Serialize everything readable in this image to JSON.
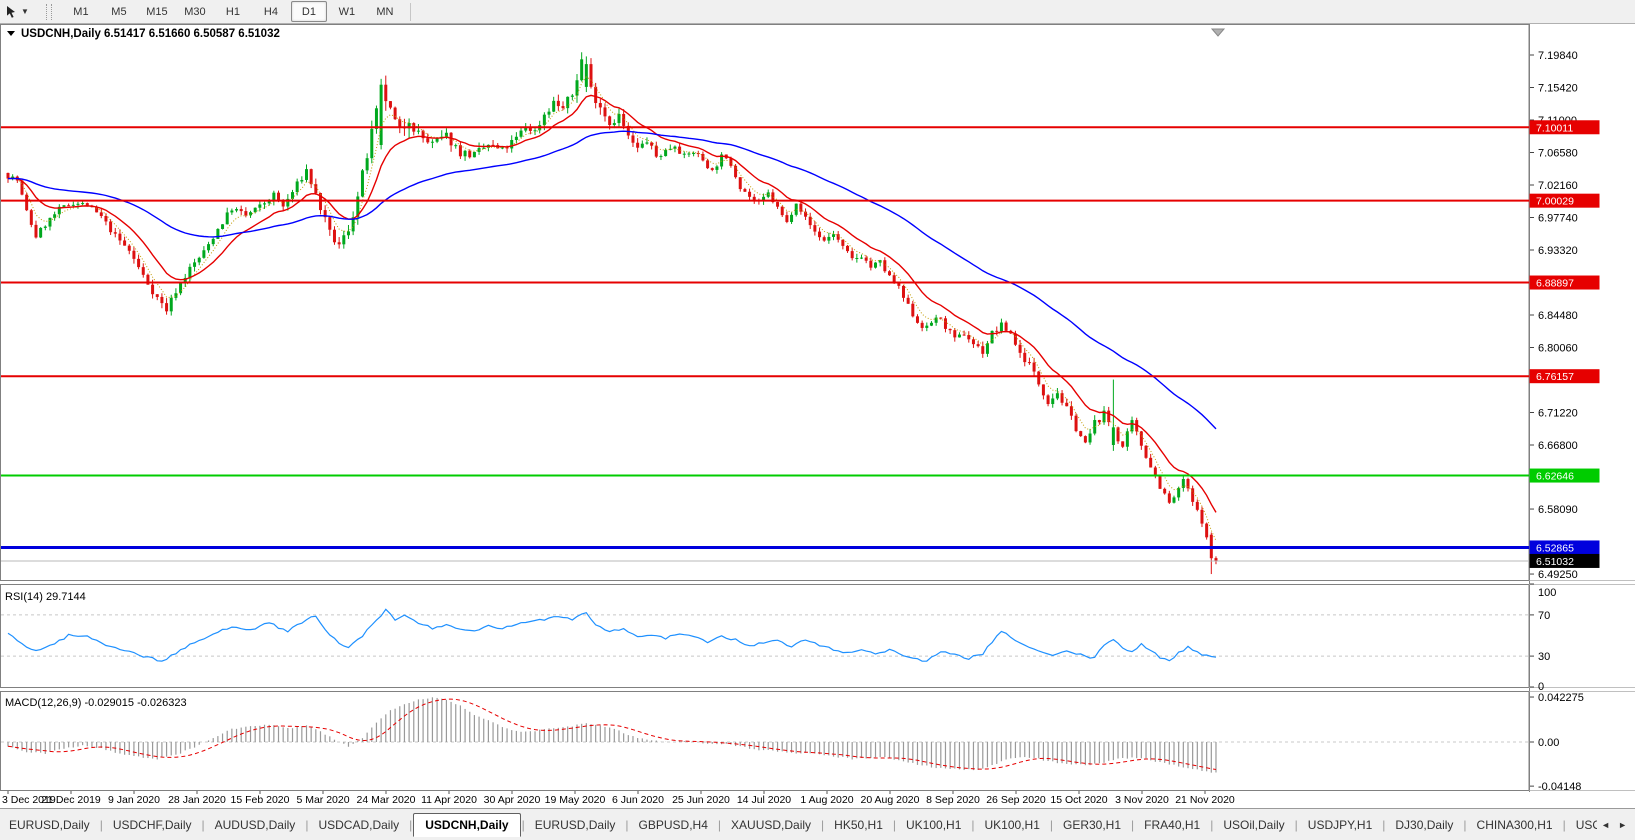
{
  "toolbar": {
    "timeframes": [
      "M1",
      "M5",
      "M15",
      "M30",
      "H1",
      "H4",
      "D1",
      "W1",
      "MN"
    ],
    "active_timeframe": "D1"
  },
  "chart": {
    "symbol": "USDCNH,Daily",
    "ohlc": "6.51417 6.51660 6.50587 6.51032",
    "price_axis_labels": [
      {
        "text": "7.19840",
        "value": 7.1984
      },
      {
        "text": "7.15420",
        "value": 7.1542
      },
      {
        "text": "7.11000",
        "value": 7.11
      },
      {
        "text": "7.06580",
        "value": 7.0658
      },
      {
        "text": "7.02160",
        "value": 7.0216
      },
      {
        "text": "6.97740",
        "value": 6.9774
      },
      {
        "text": "6.93320",
        "value": 6.9332
      },
      {
        "text": "6.84480",
        "value": 6.8448
      },
      {
        "text": "6.80060",
        "value": 6.8006
      },
      {
        "text": "6.71220",
        "value": 6.7122
      },
      {
        "text": "6.66800",
        "value": 6.668
      },
      {
        "text": "6.58090",
        "value": 6.5809
      },
      {
        "text": "6.49250",
        "value": 6.4925
      }
    ],
    "hlines": [
      {
        "value": 7.10011,
        "label": "7.10011",
        "color": "#e60000",
        "width": 2
      },
      {
        "value": 7.00029,
        "label": "7.00029",
        "color": "#e60000",
        "width": 2
      },
      {
        "value": 6.88897,
        "label": "6.88897",
        "color": "#e60000",
        "width": 2
      },
      {
        "value": 6.76157,
        "label": "6.76157",
        "color": "#e60000",
        "width": 2
      },
      {
        "value": 6.62646,
        "label": "6.62646",
        "color": "#00cc00",
        "width": 2
      },
      {
        "value": 6.52865,
        "label": "6.52865",
        "color": "#0000dd",
        "width": 3
      },
      {
        "value": 6.51032,
        "label": "6.51032",
        "color": "#b8b8b8",
        "width": 1,
        "label_bg": "#000000"
      }
    ]
  },
  "chart_data": {
    "type": "candlestick",
    "symbol": "USDCNH",
    "timeframe": "Daily",
    "bars": 260,
    "seed": 7,
    "up_color": "#00a81e",
    "down_color": "#dd1111",
    "price_keypoints": [
      [
        0,
        7.038
      ],
      [
        3,
        7.028
      ],
      [
        5,
        6.985
      ],
      [
        7,
        6.952
      ],
      [
        9,
        6.968
      ],
      [
        12,
        6.988
      ],
      [
        15,
        6.998
      ],
      [
        18,
        6.994
      ],
      [
        21,
        6.978
      ],
      [
        24,
        6.952
      ],
      [
        27,
        6.932
      ],
      [
        30,
        6.898
      ],
      [
        33,
        6.868
      ],
      [
        35,
        6.852
      ],
      [
        37,
        6.878
      ],
      [
        40,
        6.908
      ],
      [
        43,
        6.93
      ],
      [
        46,
        6.962
      ],
      [
        49,
        6.99
      ],
      [
        52,
        6.98
      ],
      [
        55,
        6.992
      ],
      [
        58,
        7.008
      ],
      [
        60,
        6.992
      ],
      [
        63,
        7.022
      ],
      [
        65,
        7.042
      ],
      [
        67,
        7.008
      ],
      [
        70,
        6.955
      ],
      [
        72,
        6.938
      ],
      [
        74,
        6.962
      ],
      [
        76,
        7.005
      ],
      [
        78,
        7.062
      ],
      [
        80,
        7.118
      ],
      [
        81,
        7.158
      ],
      [
        83,
        7.12
      ],
      [
        85,
        7.092
      ],
      [
        87,
        7.115
      ],
      [
        89,
        7.09
      ],
      [
        92,
        7.076
      ],
      [
        95,
        7.088
      ],
      [
        98,
        7.066
      ],
      [
        101,
        7.062
      ],
      [
        104,
        7.076
      ],
      [
        107,
        7.068
      ],
      [
        110,
        7.085
      ],
      [
        112,
        7.102
      ],
      [
        114,
        7.094
      ],
      [
        116,
        7.118
      ],
      [
        118,
        7.134
      ],
      [
        120,
        7.126
      ],
      [
        122,
        7.144
      ],
      [
        124,
        7.192
      ],
      [
        126,
        7.152
      ],
      [
        128,
        7.13
      ],
      [
        130,
        7.106
      ],
      [
        132,
        7.116
      ],
      [
        134,
        7.086
      ],
      [
        136,
        7.07
      ],
      [
        138,
        7.082
      ],
      [
        140,
        7.06
      ],
      [
        142,
        7.068
      ],
      [
        144,
        7.077
      ],
      [
        146,
        7.06
      ],
      [
        148,
        7.067
      ],
      [
        150,
        7.056
      ],
      [
        152,
        7.04
      ],
      [
        154,
        7.06
      ],
      [
        156,
        7.05
      ],
      [
        158,
        7.02
      ],
      [
        160,
        7.006
      ],
      [
        162,
        6.996
      ],
      [
        164,
        7.01
      ],
      [
        166,
        6.99
      ],
      [
        168,
        6.97
      ],
      [
        170,
        7.0
      ],
      [
        172,
        6.976
      ],
      [
        174,
        6.958
      ],
      [
        176,
        6.946
      ],
      [
        178,
        6.956
      ],
      [
        180,
        6.936
      ],
      [
        182,
        6.92
      ],
      [
        184,
        6.926
      ],
      [
        186,
        6.91
      ],
      [
        188,
        6.916
      ],
      [
        190,
        6.896
      ],
      [
        192,
        6.88
      ],
      [
        194,
        6.856
      ],
      [
        196,
        6.836
      ],
      [
        198,
        6.826
      ],
      [
        200,
        6.843
      ],
      [
        202,
        6.83
      ],
      [
        204,
        6.81
      ],
      [
        206,
        6.82
      ],
      [
        208,
        6.806
      ],
      [
        210,
        6.795
      ],
      [
        212,
        6.82
      ],
      [
        214,
        6.83
      ],
      [
        216,
        6.82
      ],
      [
        218,
        6.792
      ],
      [
        220,
        6.778
      ],
      [
        222,
        6.752
      ],
      [
        224,
        6.728
      ],
      [
        226,
        6.74
      ],
      [
        228,
        6.716
      ],
      [
        230,
        6.692
      ],
      [
        232,
        6.668
      ],
      [
        234,
        6.698
      ],
      [
        236,
        6.71
      ],
      [
        238,
        6.688
      ],
      [
        240,
        6.665
      ],
      [
        242,
        6.698
      ],
      [
        244,
        6.668
      ],
      [
        246,
        6.64
      ],
      [
        248,
        6.612
      ],
      [
        250,
        6.588
      ],
      [
        252,
        6.606
      ],
      [
        253,
        6.622
      ],
      [
        255,
        6.59
      ],
      [
        257,
        6.565
      ],
      [
        258,
        6.54
      ],
      [
        259,
        6.512
      ]
    ],
    "volatility_keypoints": [
      [
        0,
        0.011
      ],
      [
        20,
        0.01
      ],
      [
        30,
        0.013
      ],
      [
        40,
        0.012
      ],
      [
        60,
        0.012
      ],
      [
        70,
        0.016
      ],
      [
        78,
        0.024
      ],
      [
        86,
        0.026
      ],
      [
        95,
        0.016
      ],
      [
        110,
        0.013
      ],
      [
        122,
        0.018
      ],
      [
        126,
        0.02
      ],
      [
        135,
        0.013
      ],
      [
        150,
        0.01
      ],
      [
        165,
        0.01
      ],
      [
        180,
        0.011
      ],
      [
        195,
        0.012
      ],
      [
        210,
        0.012
      ],
      [
        225,
        0.013
      ],
      [
        240,
        0.013
      ],
      [
        250,
        0.011
      ],
      [
        259,
        0.009
      ]
    ],
    "overrides": [
      {
        "bar": 80,
        "open": 7.076,
        "close": 7.158,
        "high": 7.166,
        "low": 7.07
      },
      {
        "bar": 124,
        "open": 7.155,
        "close": 7.186,
        "high": 7.1965,
        "low": 7.148
      },
      {
        "bar": 237,
        "open": 6.668,
        "close": 6.692,
        "high": 6.757,
        "low": 6.66
      },
      {
        "bar": 258,
        "open": 6.546,
        "close": 6.514,
        "high": 6.549,
        "low": 6.4925
      },
      {
        "bar": 259,
        "open": 6.51417,
        "close": 6.51032,
        "high": 6.5166,
        "low": 6.50587
      }
    ],
    "moving_averages": [
      {
        "period": 5,
        "color": "#c09a00",
        "dotted": true
      },
      {
        "period": 13,
        "color": "#e60000",
        "dotted": false
      },
      {
        "period": 55,
        "color": "#0000ff",
        "dotted": false
      }
    ]
  },
  "rsi": {
    "label": "RSI(14) 29.7144",
    "color": "#1e90ff",
    "levels": [
      70,
      30
    ],
    "axis_labels": [
      {
        "text": "100",
        "value": 100
      },
      {
        "text": "70",
        "value": 70
      },
      {
        "text": "30",
        "value": 30
      },
      {
        "text": "0",
        "value": 0
      }
    ],
    "keypoints": [
      [
        0,
        52
      ],
      [
        3,
        42
      ],
      [
        6,
        35
      ],
      [
        9,
        40
      ],
      [
        13,
        50
      ],
      [
        17,
        49
      ],
      [
        21,
        41
      ],
      [
        25,
        36
      ],
      [
        29,
        30
      ],
      [
        33,
        25
      ],
      [
        36,
        33
      ],
      [
        40,
        43
      ],
      [
        44,
        51
      ],
      [
        48,
        59
      ],
      [
        52,
        56
      ],
      [
        56,
        62
      ],
      [
        60,
        54
      ],
      [
        64,
        66
      ],
      [
        66,
        68
      ],
      [
        68,
        55
      ],
      [
        71,
        42
      ],
      [
        73,
        38
      ],
      [
        76,
        50
      ],
      [
        79,
        64
      ],
      [
        81,
        75
      ],
      [
        83,
        65
      ],
      [
        85,
        70
      ],
      [
        88,
        62
      ],
      [
        91,
        57
      ],
      [
        94,
        61
      ],
      [
        97,
        55
      ],
      [
        100,
        54
      ],
      [
        103,
        59
      ],
      [
        106,
        57
      ],
      [
        109,
        60
      ],
      [
        112,
        64
      ],
      [
        115,
        66
      ],
      [
        118,
        69
      ],
      [
        121,
        66
      ],
      [
        124,
        73
      ],
      [
        126,
        60
      ],
      [
        129,
        54
      ],
      [
        132,
        57
      ],
      [
        135,
        48
      ],
      [
        138,
        51
      ],
      [
        141,
        47
      ],
      [
        144,
        52
      ],
      [
        147,
        48
      ],
      [
        150,
        44
      ],
      [
        153,
        49
      ],
      [
        156,
        46
      ],
      [
        159,
        40
      ],
      [
        162,
        43
      ],
      [
        165,
        45
      ],
      [
        168,
        39
      ],
      [
        171,
        46
      ],
      [
        174,
        41
      ],
      [
        177,
        36
      ],
      [
        180,
        33
      ],
      [
        183,
        37
      ],
      [
        186,
        32
      ],
      [
        189,
        36
      ],
      [
        192,
        31
      ],
      [
        194,
        28
      ],
      [
        197,
        25
      ],
      [
        200,
        34
      ],
      [
        203,
        31
      ],
      [
        206,
        28
      ],
      [
        209,
        32
      ],
      [
        211,
        44
      ],
      [
        213,
        53
      ],
      [
        215,
        49
      ],
      [
        218,
        40
      ],
      [
        221,
        35
      ],
      [
        224,
        30
      ],
      [
        227,
        35
      ],
      [
        230,
        31
      ],
      [
        233,
        28
      ],
      [
        235,
        41
      ],
      [
        237,
        47
      ],
      [
        239,
        38
      ],
      [
        241,
        34
      ],
      [
        243,
        41
      ],
      [
        245,
        35
      ],
      [
        247,
        29
      ],
      [
        249,
        26
      ],
      [
        251,
        33
      ],
      [
        253,
        39
      ],
      [
        255,
        34
      ],
      [
        257,
        30
      ],
      [
        259,
        29.7
      ]
    ]
  },
  "macd": {
    "label": "MACD(12,26,9) -0.029015 -0.026323",
    "hist_color": "#999999",
    "signal_color": "#e60000",
    "axis_labels": [
      {
        "text": "0.042275",
        "value": 0.042275
      },
      {
        "text": "0.00",
        "value": 0
      },
      {
        "text": "-0.04148",
        "value": -0.04148
      }
    ],
    "keypoints": [
      [
        0,
        -0.004
      ],
      [
        4,
        -0.009
      ],
      [
        8,
        -0.011
      ],
      [
        12,
        -0.006
      ],
      [
        16,
        -0.003
      ],
      [
        20,
        -0.006
      ],
      [
        24,
        -0.011
      ],
      [
        28,
        -0.014
      ],
      [
        32,
        -0.016
      ],
      [
        36,
        -0.012
      ],
      [
        40,
        -0.005
      ],
      [
        44,
        0.004
      ],
      [
        48,
        0.012
      ],
      [
        52,
        0.015
      ],
      [
        56,
        0.016
      ],
      [
        60,
        0.013
      ],
      [
        64,
        0.015
      ],
      [
        67,
        0.01
      ],
      [
        70,
        0.002
      ],
      [
        73,
        -0.004
      ],
      [
        76,
        0.004
      ],
      [
        79,
        0.018
      ],
      [
        82,
        0.03
      ],
      [
        85,
        0.036
      ],
      [
        88,
        0.04
      ],
      [
        91,
        0.042
      ],
      [
        94,
        0.04
      ],
      [
        97,
        0.034
      ],
      [
        100,
        0.026
      ],
      [
        103,
        0.02
      ],
      [
        106,
        0.014
      ],
      [
        109,
        0.01
      ],
      [
        112,
        0.01
      ],
      [
        115,
        0.012
      ],
      [
        118,
        0.014
      ],
      [
        121,
        0.015
      ],
      [
        124,
        0.018
      ],
      [
        127,
        0.016
      ],
      [
        130,
        0.012
      ],
      [
        133,
        0.007
      ],
      [
        136,
        0.003
      ],
      [
        139,
        0.001
      ],
      [
        142,
        0.0
      ],
      [
        145,
        0.001
      ],
      [
        148,
        0.0
      ],
      [
        151,
        -0.002
      ],
      [
        154,
        -0.002
      ],
      [
        157,
        -0.004
      ],
      [
        160,
        -0.007
      ],
      [
        163,
        -0.008
      ],
      [
        166,
        -0.009
      ],
      [
        169,
        -0.011
      ],
      [
        172,
        -0.01
      ],
      [
        175,
        -0.012
      ],
      [
        178,
        -0.014
      ],
      [
        181,
        -0.016
      ],
      [
        184,
        -0.015
      ],
      [
        187,
        -0.014
      ],
      [
        190,
        -0.016
      ],
      [
        193,
        -0.019
      ],
      [
        196,
        -0.022
      ],
      [
        199,
        -0.024
      ],
      [
        202,
        -0.025
      ],
      [
        205,
        -0.026
      ],
      [
        208,
        -0.026
      ],
      [
        211,
        -0.022
      ],
      [
        214,
        -0.017
      ],
      [
        217,
        -0.014
      ],
      [
        220,
        -0.015
      ],
      [
        223,
        -0.018
      ],
      [
        226,
        -0.02
      ],
      [
        229,
        -0.021
      ],
      [
        232,
        -0.022
      ],
      [
        235,
        -0.019
      ],
      [
        238,
        -0.016
      ],
      [
        241,
        -0.015
      ],
      [
        244,
        -0.016
      ],
      [
        247,
        -0.019
      ],
      [
        250,
        -0.022
      ],
      [
        253,
        -0.024
      ],
      [
        256,
        -0.027
      ],
      [
        259,
        -0.029
      ]
    ]
  },
  "timeline": {
    "dates": [
      "3 Dec 2019",
      "21 Dec 2019",
      "9 Jan 2020",
      "28 Jan 2020",
      "15 Feb 2020",
      "5 Mar 2020",
      "24 Mar 2020",
      "11 Apr 2020",
      "30 Apr 2020",
      "19 May 2020",
      "6 Jun 2020",
      "25 Jun 2020",
      "14 Jul 2020",
      "1 Aug 2020",
      "20 Aug 2020",
      "8 Sep 2020",
      "26 Sep 2020",
      "15 Oct 2020",
      "3 Nov 2020",
      "21 Nov 2020"
    ]
  },
  "tabs": {
    "items": [
      "EURUSD,Daily",
      "USDCHF,Daily",
      "AUDUSD,Daily",
      "USDCAD,Daily",
      "USDCNH,Daily",
      "EURUSD,Daily",
      "GBPUSD,H4",
      "XAUUSD,Daily",
      "HK50,H1",
      "UK100,H1",
      "UK100,H1",
      "GER30,H1",
      "FRA40,H1",
      "USOil,Daily",
      "USDJPY,H1",
      "DJ30,Daily",
      "CHINA300,H1",
      "USOil,H"
    ],
    "active_index": 4,
    "scroll_left_icon": "◄",
    "scroll_right_icon": "►"
  }
}
